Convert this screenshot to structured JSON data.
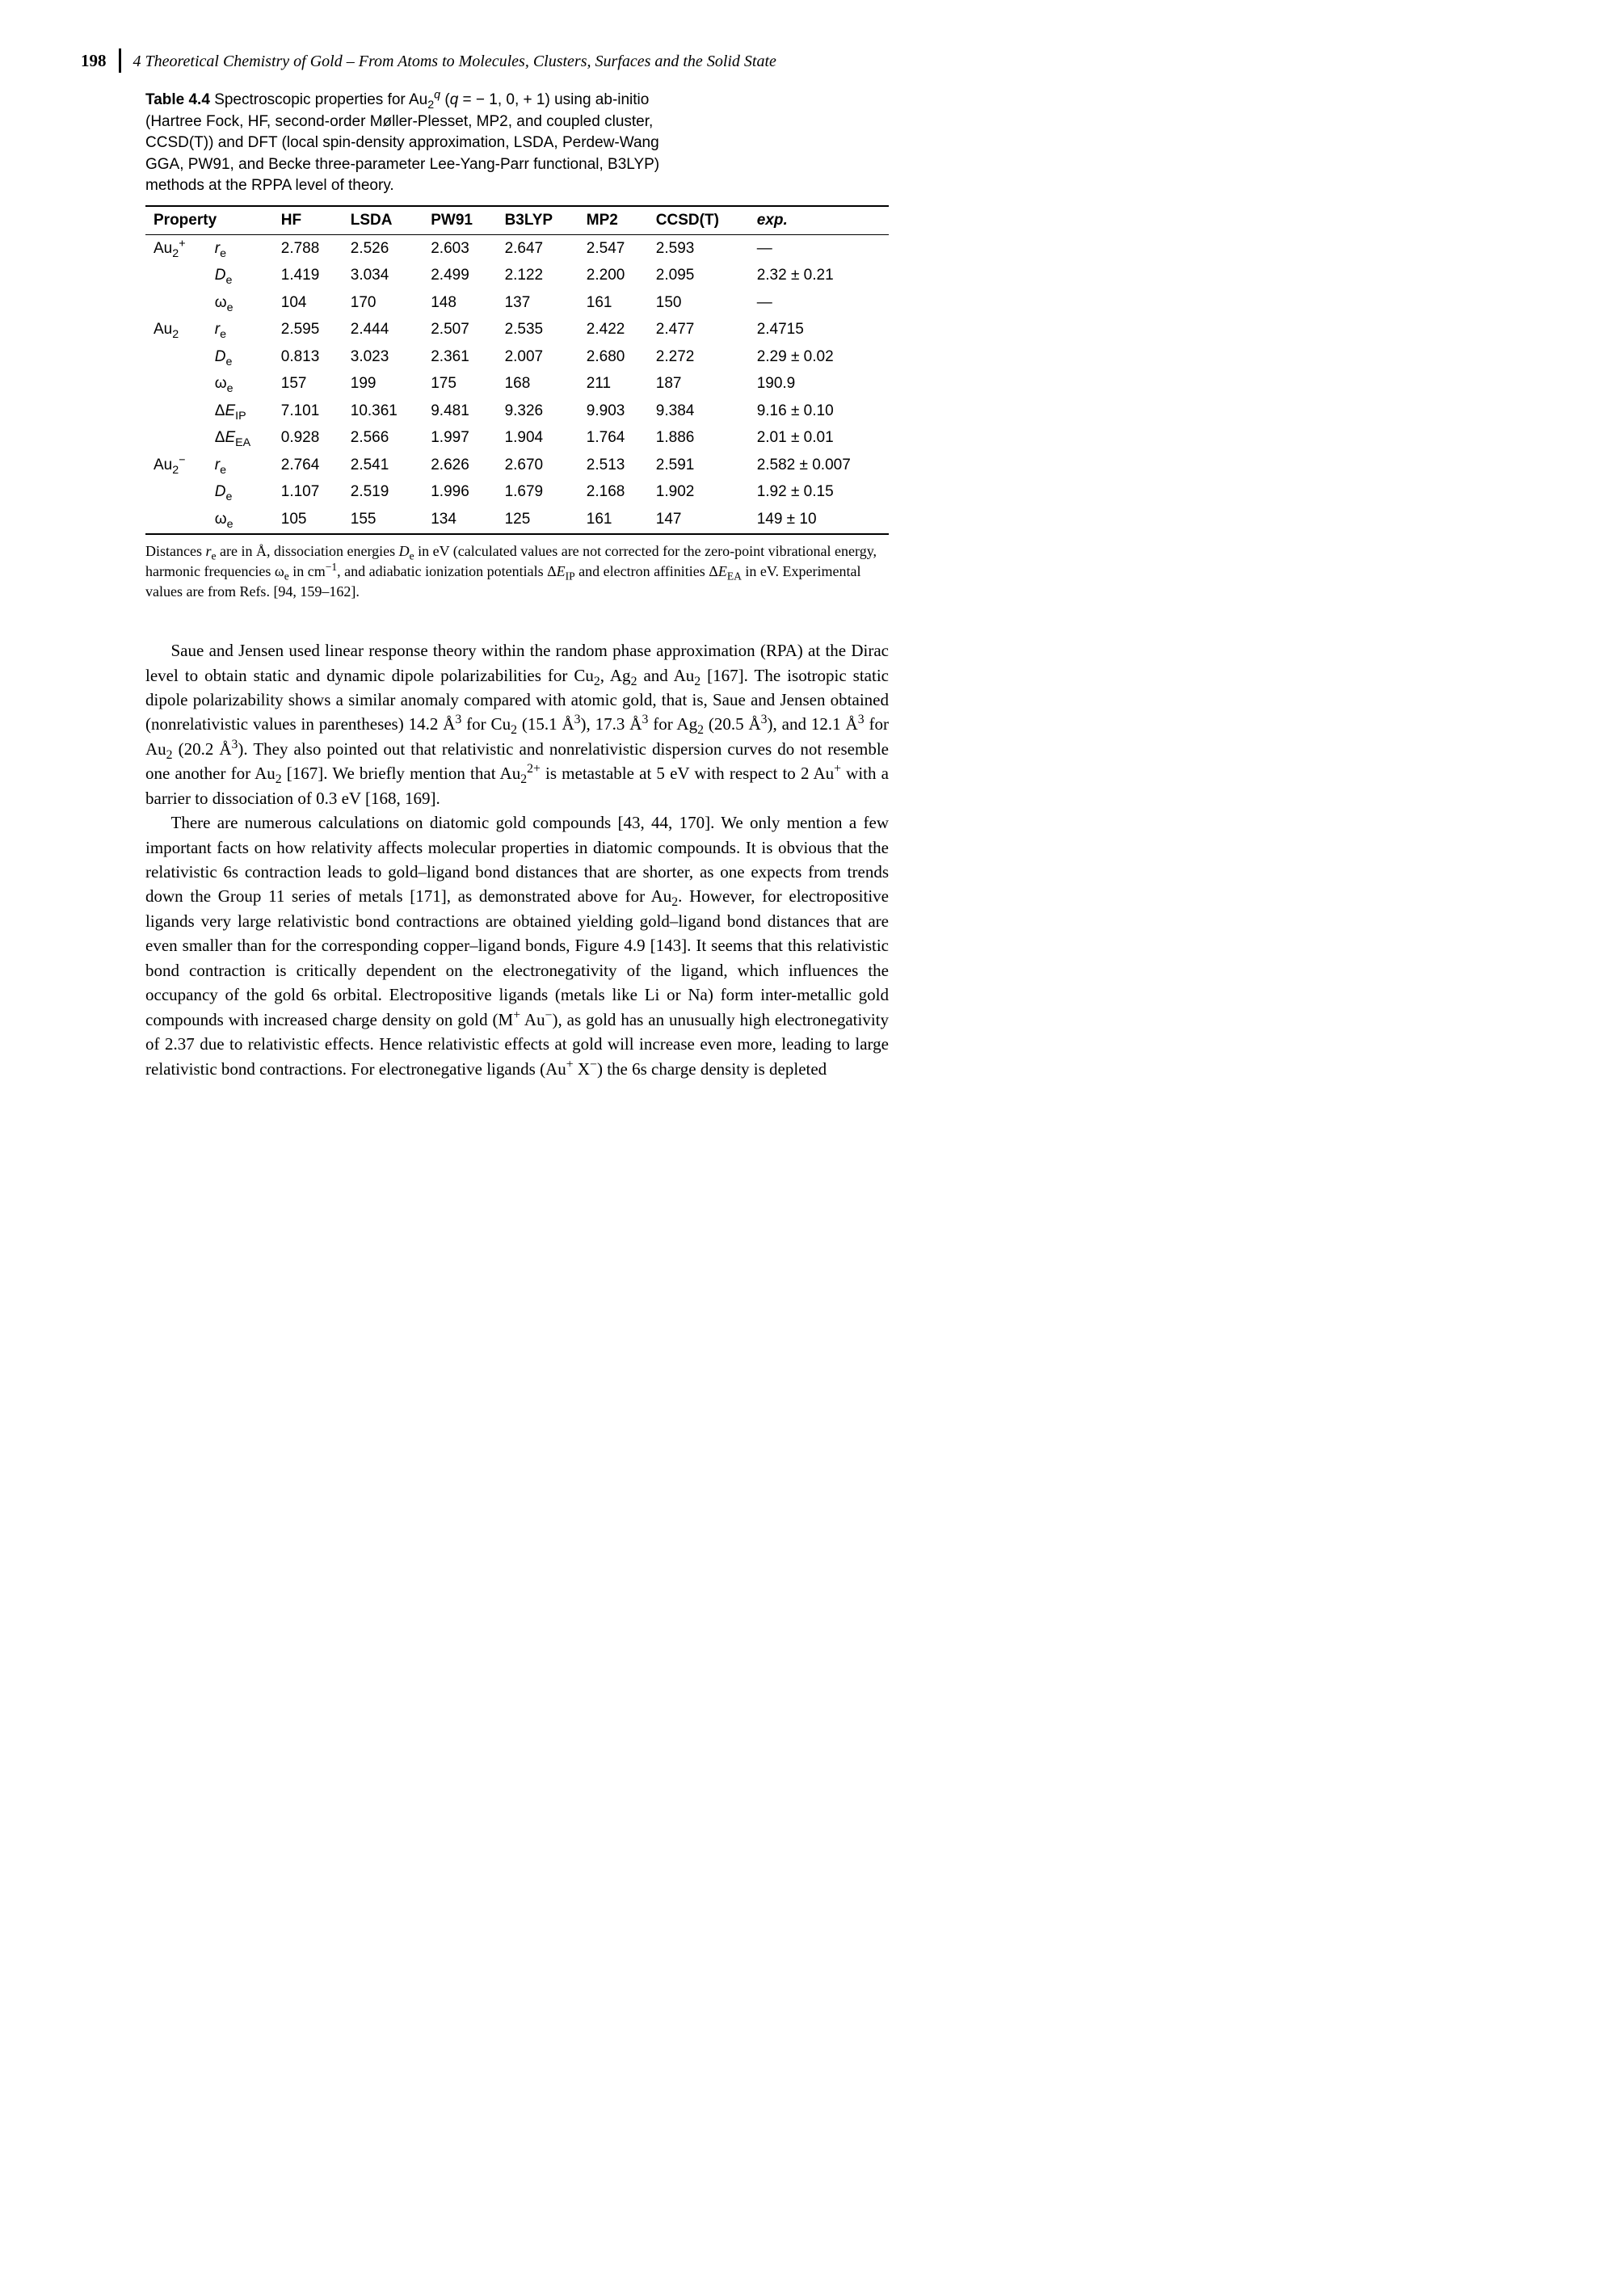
{
  "header": {
    "page_number": "198",
    "running_title": "4 Theoretical Chemistry of Gold – From Atoms to Molecules, Clusters, Surfaces and the Solid State"
  },
  "table": {
    "label": "Table 4.4",
    "caption_html": "Spectroscopic properties for Au<sub>2</sub><sup><i>q</i></sup> (<i>q</i> = − 1, 0, + 1) using ab-initio (Hartree Fock, HF, second-order Møller-Plesset, MP2, and coupled cluster, CCSD(T)) and DFT (local spin-density approximation, LSDA, Perdew-Wang GGA, PW91, and Becke three-parameter Lee-Yang-Parr functional, B3LYP) methods at the RPPA level of theory.",
    "columns": [
      "Property",
      "",
      "HF",
      "LSDA",
      "PW91",
      "B3LYP",
      "MP2",
      "CCSD(T)",
      "exp."
    ],
    "blocks": [
      {
        "species_html": "Au<sub>2</sub><sup>+</sup>",
        "rows": [
          {
            "param_html": "<i>r</i><sub>e</sub>",
            "vals": [
              "2.788",
              "2.526",
              "2.603",
              "2.647",
              "2.547",
              "2.593",
              "—"
            ]
          },
          {
            "param_html": "<i>D</i><sub>e</sub>",
            "vals": [
              "1.419",
              "3.034",
              "2.499",
              "2.122",
              "2.200",
              "2.095",
              "2.32 ± 0.21"
            ]
          },
          {
            "param_html": "ω<sub>e</sub>",
            "vals": [
              "104",
              "170",
              "148",
              "137",
              "161",
              "150",
              "—"
            ]
          }
        ]
      },
      {
        "species_html": "Au<sub>2</sub>",
        "rows": [
          {
            "param_html": "<i>r</i><sub>e</sub>",
            "vals": [
              "2.595",
              "2.444",
              "2.507",
              "2.535",
              "2.422",
              "2.477",
              "2.4715"
            ]
          },
          {
            "param_html": "<i>D</i><sub>e</sub>",
            "vals": [
              "0.813",
              "3.023",
              "2.361",
              "2.007",
              "2.680",
              "2.272",
              "2.29 ± 0.02"
            ]
          },
          {
            "param_html": "ω<sub>e</sub>",
            "vals": [
              "157",
              "199",
              "175",
              "168",
              "211",
              "187",
              "190.9"
            ]
          },
          {
            "param_html": "Δ<i>E</i><sub>IP</sub>",
            "vals": [
              "7.101",
              "10.361",
              "9.481",
              "9.326",
              "9.903",
              "9.384",
              "9.16 ± 0.10"
            ]
          },
          {
            "param_html": "Δ<i>E</i><sub>EA</sub>",
            "vals": [
              "0.928",
              "2.566",
              "1.997",
              "1.904",
              "1.764",
              "1.886",
              "2.01 ± 0.01"
            ]
          }
        ]
      },
      {
        "species_html": "Au<sub>2</sub><sup>−</sup>",
        "rows": [
          {
            "param_html": "<i>r</i><sub>e</sub>",
            "vals": [
              "2.764",
              "2.541",
              "2.626",
              "2.670",
              "2.513",
              "2.591",
              "2.582 ± 0.007"
            ]
          },
          {
            "param_html": "<i>D</i><sub>e</sub>",
            "vals": [
              "1.107",
              "2.519",
              "1.996",
              "1.679",
              "2.168",
              "1.902",
              "1.92 ± 0.15"
            ]
          },
          {
            "param_html": "ω<sub>e</sub>",
            "vals": [
              "105",
              "155",
              "134",
              "125",
              "161",
              "147",
              "149 ± 10"
            ]
          }
        ]
      }
    ],
    "footnote_html": "Distances <i>r</i><sub>e</sub> are in Å, dissociation energies <i>D</i><sub>e</sub> in eV (calculated values are not corrected for the zero-point vibrational energy, harmonic frequencies ω<sub>e</sub> in cm<sup>−1</sup>, and adiabatic ionization potentials Δ<i>E</i><sub>IP</sub> and electron affinities Δ<i>E</i><sub>EA</sub> in eV. Experimental values are from Refs. [94, 159–162]."
  },
  "paragraphs": [
    "Saue and Jensen used linear response theory within the random phase approximation (RPA) at the Dirac level to obtain static and dynamic dipole polarizabilities for Cu<sub>2</sub>, Ag<sub>2</sub> and Au<sub>2</sub> [167]. The isotropic static dipole polarizability shows a similar anomaly compared with atomic gold, that is, Saue and Jensen obtained (nonrelativistic values in parentheses) 14.2 Å<sup>3</sup> for Cu<sub>2</sub> (15.1 Å<sup>3</sup>), 17.3 Å<sup>3</sup> for Ag<sub>2</sub> (20.5 Å<sup>3</sup>), and 12.1 Å<sup>3</sup> for Au<sub>2</sub> (20.2 Å<sup>3</sup>). They also pointed out that relativistic and nonrelativistic dispersion curves do not resemble one another for Au<sub>2</sub> [167]. We briefly mention that Au<sub>2</sub><sup>2+</sup> is metastable at 5 eV with respect to 2 Au<sup>+</sup> with a barrier to dissociation of 0.3 eV [168, 169].",
    "There are numerous calculations on diatomic gold compounds [43, 44, 170]. We only mention a few important facts on how relativity affects molecular properties in diatomic compounds. It is obvious that the relativistic 6s contraction leads to gold–ligand bond distances that are shorter, as one expects from trends down the Group 11 series of metals [171], as demonstrated above for Au<sub>2</sub>. However, for electropositive ligands very large relativistic bond contractions are obtained yielding gold–ligand bond distances that are even smaller than for the corresponding copper–ligand bonds, Figure 4.9 [143]. It seems that this relativistic bond contraction is critically dependent on the electronegativity of the ligand, which influences the occupancy of the gold 6s orbital. Electropositive ligands (metals like Li or Na) form inter-metallic gold compounds with increased charge density on gold (M<sup>+</sup> Au<sup>−</sup>), as gold has an unusually high electronegativity of 2.37 due to relativistic effects. Hence relativistic effects at gold will increase even more, leading to large relativistic bond contractions. For electronegative ligands (Au<sup>+</sup> X<sup>−</sup>) the 6s charge density is depleted"
  ]
}
